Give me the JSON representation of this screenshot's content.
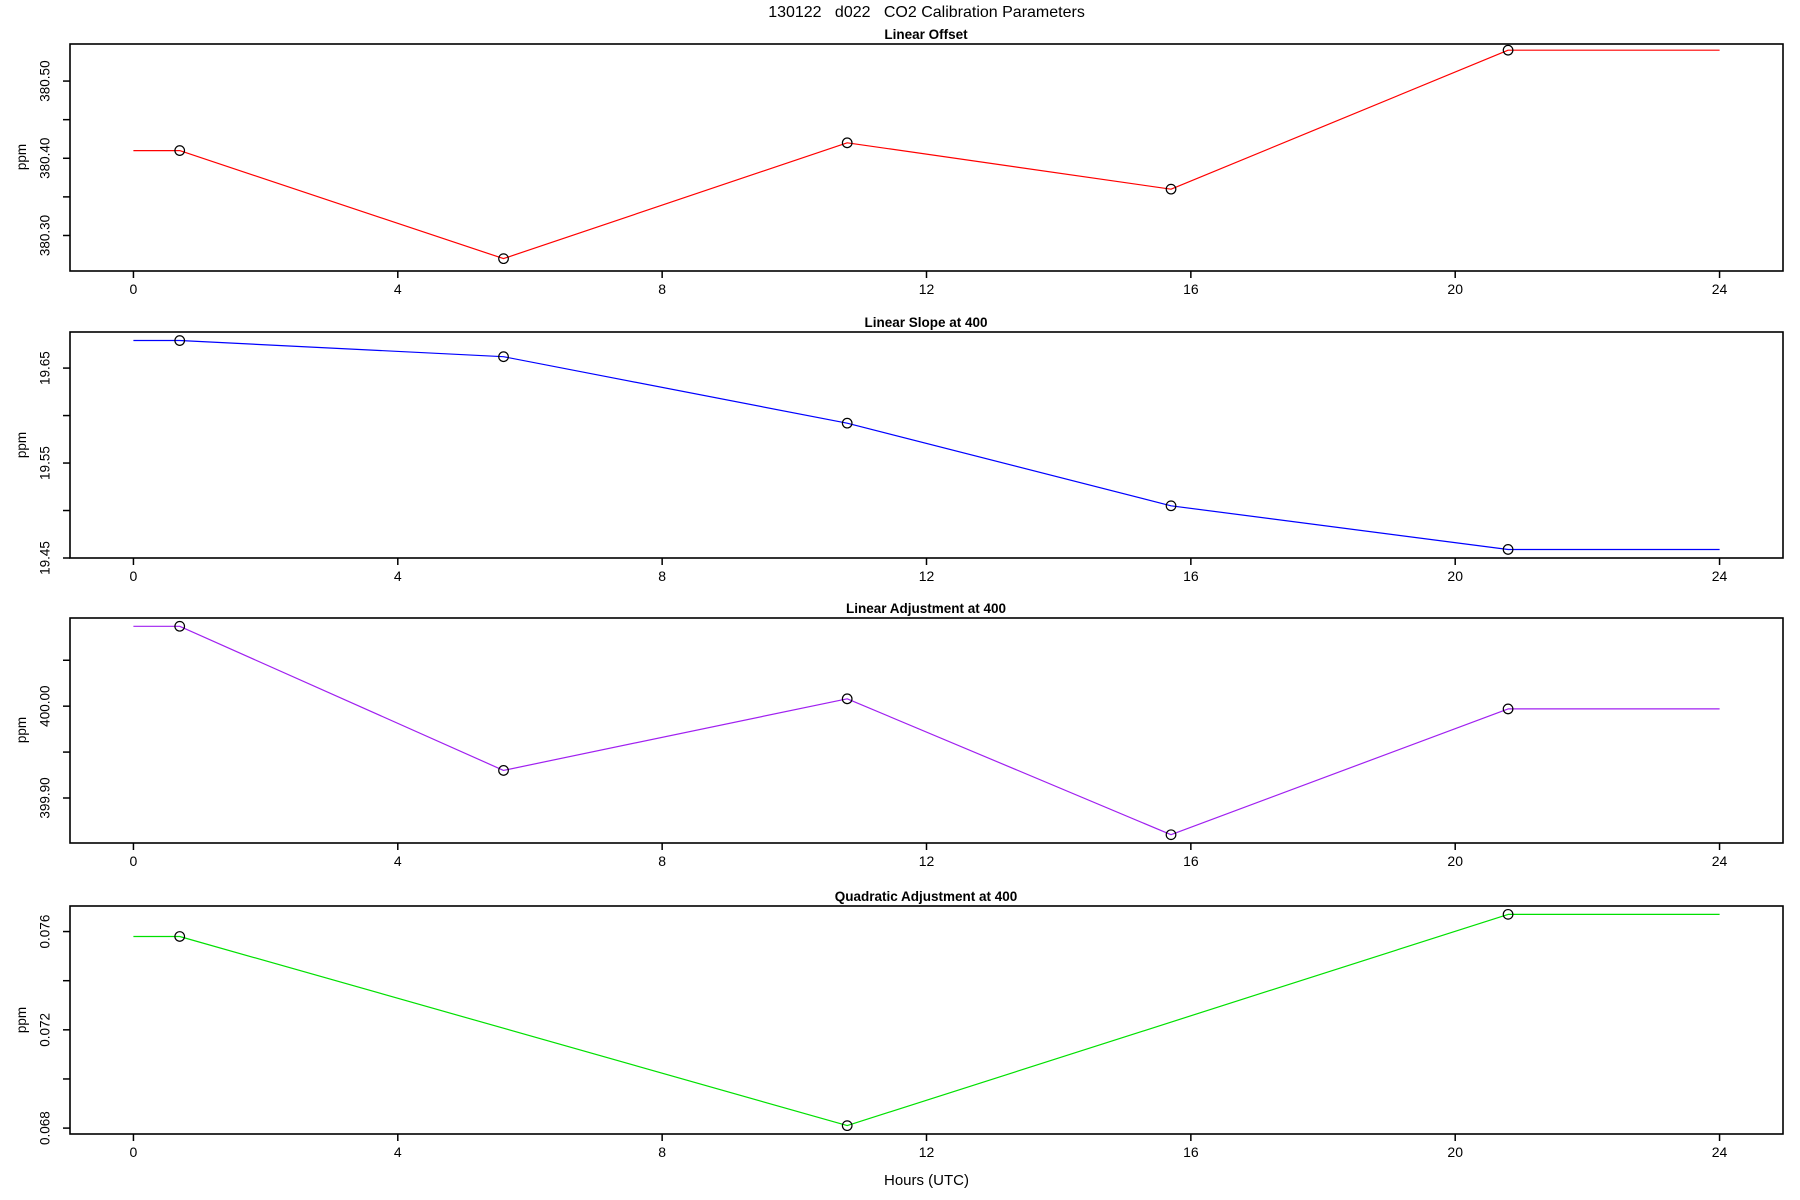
{
  "figure": {
    "title": "130122   d022   CO2 Calibration Parameters",
    "xlabel": "Hours (UTC)",
    "xlim": [
      -0.96,
      24.96
    ],
    "x_ticks": [
      {
        "v": 0,
        "label": "0"
      },
      {
        "v": 4,
        "label": "4"
      },
      {
        "v": 8,
        "label": "8"
      },
      {
        "v": 12,
        "label": "12"
      },
      {
        "v": 16,
        "label": "16"
      },
      {
        "v": 20,
        "label": "20"
      },
      {
        "v": 24,
        "label": "24"
      }
    ],
    "background_color": "#ffffff",
    "axis_color": "#000000",
    "marker_style": "open-circle",
    "marker_color": "#000000",
    "grid": false,
    "legend": "none"
  },
  "chart_data": [
    {
      "type": "line",
      "title": "Linear Offset",
      "ylabel": "ppm",
      "line_color": "#FF0000",
      "x": [
        0.7,
        5.6,
        10.8,
        15.7,
        20.8
      ],
      "y": [
        380.41,
        380.27,
        380.42,
        380.36,
        380.54
      ],
      "line_start_x": 0,
      "line_end_x": 24,
      "ylim": [
        380.254,
        380.548
      ],
      "y_ticks": [
        {
          "v": 380.3,
          "label": "380.30"
        },
        {
          "v": 380.35,
          "label": ""
        },
        {
          "v": 380.4,
          "label": "380.40"
        },
        {
          "v": 380.45,
          "label": ""
        },
        {
          "v": 380.5,
          "label": "380.50"
        }
      ]
    },
    {
      "type": "line",
      "title": "Linear Slope at 400",
      "ylabel": "ppm",
      "line_color": "#0000FF",
      "x": [
        0.7,
        5.6,
        10.8,
        15.7,
        20.8
      ],
      "y": [
        19.679,
        19.662,
        19.592,
        19.505,
        19.459
      ],
      "line_start_x": 0,
      "line_end_x": 24,
      "ylim": [
        19.45,
        19.688
      ],
      "y_ticks": [
        {
          "v": 19.45,
          "label": "19.45"
        },
        {
          "v": 19.5,
          "label": ""
        },
        {
          "v": 19.55,
          "label": "19.55"
        },
        {
          "v": 19.6,
          "label": ""
        },
        {
          "v": 19.65,
          "label": "19.65"
        }
      ]
    },
    {
      "type": "line",
      "title": "Linear Adjustment at 400",
      "ylabel": "ppm",
      "line_color": "#A020F0",
      "x": [
        0.7,
        5.6,
        10.8,
        15.7,
        20.8
      ],
      "y": [
        400.087,
        399.93,
        400.008,
        399.86,
        399.997
      ],
      "line_start_x": 0,
      "line_end_x": 24,
      "ylim": [
        399.851,
        400.096
      ],
      "y_ticks": [
        {
          "v": 399.9,
          "label": "399.90"
        },
        {
          "v": 399.95,
          "label": ""
        },
        {
          "v": 400.0,
          "label": "400.00"
        },
        {
          "v": 400.05,
          "label": ""
        }
      ]
    },
    {
      "type": "line",
      "title": "Quadratic Adjustment at 400",
      "ylabel": "ppm",
      "line_color": "#00E000",
      "x": [
        0.7,
        10.8,
        20.8
      ],
      "y": [
        0.0758,
        0.0681,
        0.0767
      ],
      "line_start_x": 0,
      "line_end_x": 24,
      "ylim": [
        0.06776,
        0.07704
      ],
      "y_ticks": [
        {
          "v": 0.068,
          "label": "0.068"
        },
        {
          "v": 0.07,
          "label": ""
        },
        {
          "v": 0.072,
          "label": "0.072"
        },
        {
          "v": 0.074,
          "label": ""
        },
        {
          "v": 0.076,
          "label": "0.076"
        }
      ]
    }
  ]
}
